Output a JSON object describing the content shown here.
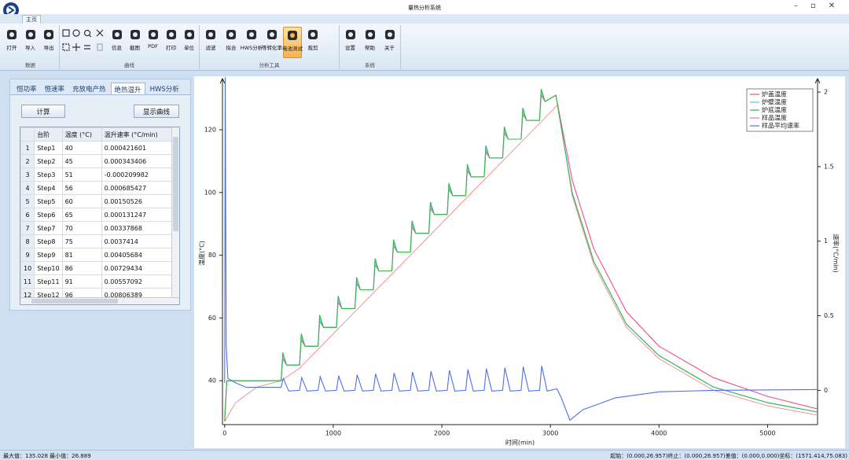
{
  "window": {
    "title": "量热分析系统",
    "tab": "主页"
  },
  "ribbon": {
    "active_button": [
      2,
      4
    ],
    "groups": [
      {
        "label": "数据",
        "buttons": [
          "打开",
          "导入",
          "导出"
        ]
      },
      {
        "label": "曲线",
        "buttons": [
          "信息",
          "截图",
          "PDF",
          "打印",
          "单位"
        ]
      },
      {
        "label": "分析工具",
        "buttons": [
          "滤波",
          "拟合",
          "HWS分析",
          "等转化率",
          "电池测试",
          "裁剪"
        ]
      },
      {
        "label": "系统",
        "buttons": [
          "设置",
          "帮助",
          "关于"
        ]
      }
    ]
  },
  "panel": {
    "tabs": [
      "恒功率",
      "恒速率",
      "充放电产热",
      "绝热温升",
      "HWS分析"
    ],
    "active_tab": 3,
    "buttons": [
      "计算",
      "显示曲线"
    ],
    "table": {
      "columns": [
        "台阶",
        "温度 (°C)",
        "温升速率 (°C/min)"
      ],
      "rows": [
        [
          1,
          "Step1",
          40,
          0.000421601
        ],
        [
          2,
          "Step2",
          45,
          0.000343406
        ],
        [
          3,
          "Step3",
          51,
          -0.000209982
        ],
        [
          4,
          "Step4",
          56,
          0.000685427
        ],
        [
          5,
          "Step5",
          60,
          0.00150526
        ],
        [
          6,
          "Step6",
          65,
          0.000131247
        ],
        [
          7,
          "Step7",
          70,
          0.00337868
        ],
        [
          8,
          "Step8",
          75,
          0.0037414
        ],
        [
          9,
          "Step9",
          81,
          0.00405684
        ],
        [
          10,
          "Step10",
          86,
          0.00729434
        ],
        [
          11,
          "Step11",
          91,
          0.00557092
        ],
        [
          12,
          "Step12",
          96,
          0.00806389
        ]
      ]
    }
  },
  "chart": {
    "type": "line",
    "xlabel": "时间(min)",
    "ylabel": "温度(°C)",
    "y2label": "速率(°C/min)",
    "xlim": [
      -20,
      5460
    ],
    "xticks": [
      0,
      1000,
      2000,
      3000,
      4000,
      5000
    ],
    "ylim": [
      26,
      136.3
    ],
    "yticks": [
      40,
      60,
      80,
      100,
      120
    ],
    "y2lim": [
      -0.23,
      2.09
    ],
    "y2ticks": [
      0,
      0.5,
      1,
      1.5,
      2
    ],
    "legend": "upper right",
    "series": [
      {
        "name": "炉盖温度",
        "color": "#ee4f86",
        "x": [
          0,
          20,
          520,
          535,
          570,
          690,
          705,
          740,
          860,
          875,
          910,
          1030,
          1045,
          1080,
          1200,
          1215,
          1250,
          1370,
          1385,
          1420,
          1540,
          1555,
          1590,
          1710,
          1725,
          1760,
          1880,
          1895,
          1930,
          2050,
          2065,
          2100,
          2220,
          2235,
          2270,
          2390,
          2405,
          2440,
          2560,
          2575,
          2610,
          2730,
          2745,
          2780,
          2900,
          2915,
          2950,
          3050,
          3200,
          3400,
          3700,
          4000,
          4500,
          5000,
          5460
        ],
        "values": [
          28,
          40,
          40,
          47,
          45,
          45,
          53,
          51,
          51,
          59,
          57,
          57,
          65,
          63,
          63,
          71,
          69,
          69,
          77,
          75,
          75,
          83,
          81,
          81,
          89,
          87,
          87,
          95,
          93,
          93,
          101,
          99,
          99,
          107,
          105,
          105,
          113,
          111,
          111,
          119,
          117,
          117,
          125,
          123,
          123,
          131,
          129,
          131,
          104,
          82,
          62,
          51,
          41,
          35,
          31
        ]
      },
      {
        "name": "炉壁温度",
        "color": "#3fd6e6",
        "x": [
          0,
          20,
          520,
          535,
          570,
          690,
          705,
          740,
          860,
          875,
          910,
          1030,
          1045,
          1080,
          1200,
          1215,
          1250,
          1370,
          1385,
          1420,
          1540,
          1555,
          1590,
          1710,
          1725,
          1760,
          1880,
          1895,
          1930,
          2050,
          2065,
          2100,
          2220,
          2235,
          2270,
          2390,
          2405,
          2440,
          2560,
          2575,
          2610,
          2730,
          2745,
          2780,
          2900,
          2915,
          2950,
          3050,
          3200,
          3400,
          3700,
          4000,
          4500,
          5000,
          5460
        ],
        "values": [
          27,
          40,
          40,
          48,
          45,
          45,
          54,
          51,
          51,
          60,
          57,
          57,
          66,
          63,
          63,
          72,
          69,
          69,
          78,
          75,
          75,
          84,
          81,
          81,
          90,
          87,
          87,
          96,
          93,
          93,
          102,
          99,
          99,
          108,
          105,
          105,
          114,
          111,
          111,
          120,
          117,
          117,
          126,
          123,
          123,
          132,
          129,
          131,
          100,
          78,
          58,
          48,
          38,
          33,
          30
        ]
      },
      {
        "name": "炉底温度",
        "color": "#3cb44b",
        "x": [
          0,
          20,
          520,
          535,
          570,
          690,
          705,
          740,
          860,
          875,
          910,
          1030,
          1045,
          1080,
          1200,
          1215,
          1250,
          1370,
          1385,
          1420,
          1540,
          1555,
          1590,
          1710,
          1725,
          1760,
          1880,
          1895,
          1930,
          2050,
          2065,
          2100,
          2220,
          2235,
          2270,
          2390,
          2405,
          2440,
          2560,
          2575,
          2610,
          2730,
          2745,
          2780,
          2900,
          2915,
          2950,
          3050,
          3200,
          3400,
          3700,
          4000,
          4500,
          5000,
          5460
        ],
        "values": [
          27,
          40,
          40,
          49,
          45,
          45,
          55,
          51,
          51,
          61,
          57,
          57,
          67,
          63,
          63,
          73,
          69,
          69,
          79,
          75,
          75,
          85,
          81,
          81,
          91,
          87,
          87,
          97,
          93,
          93,
          103,
          99,
          99,
          109,
          105,
          105,
          115,
          111,
          111,
          121,
          117,
          117,
          127,
          123,
          123,
          133,
          129,
          131,
          100,
          78,
          58,
          48,
          38,
          33,
          30
        ]
      },
      {
        "name": "样品温度",
        "color": "#f07a7a",
        "x": [
          0,
          100,
          300,
          520,
          690,
          860,
          1030,
          1200,
          1370,
          1540,
          1710,
          1880,
          2050,
          2220,
          2390,
          2560,
          2730,
          2900,
          3070,
          3200,
          3400,
          3700,
          4000,
          4500,
          5000,
          5460
        ],
        "values": [
          27,
          33,
          38,
          40,
          44,
          50,
          56,
          62,
          68,
          74,
          80,
          86,
          92,
          98,
          104,
          110,
          116,
          122,
          128,
          99,
          77,
          57,
          47,
          37,
          32,
          29
        ]
      },
      {
        "name": "样品平均速率",
        "color": "#4f6fe8",
        "axis": "y2",
        "x": [
          0,
          5,
          15,
          30,
          100,
          200,
          520,
          540,
          590,
          690,
          710,
          760,
          860,
          880,
          930,
          1030,
          1050,
          1100,
          1200,
          1220,
          1270,
          1370,
          1390,
          1440,
          1540,
          1560,
          1610,
          1710,
          1730,
          1780,
          1880,
          1900,
          1950,
          2050,
          2070,
          2120,
          2220,
          2240,
          2290,
          2390,
          2410,
          2460,
          2560,
          2580,
          2630,
          2730,
          2750,
          2800,
          2900,
          2920,
          2970,
          3060,
          3100,
          3180,
          3300,
          3600,
          4000,
          4500,
          5460
        ],
        "values": [
          0.05,
          2.1,
          0.3,
          0.08,
          0.05,
          0.02,
          0.02,
          0.08,
          -0.005,
          0,
          0.086,
          -0.005,
          0,
          0.092,
          -0.005,
          0,
          0.098,
          -0.005,
          0,
          0.104,
          -0.005,
          0,
          0.11,
          -0.005,
          0,
          0.116,
          -0.005,
          0,
          0.122,
          -0.005,
          0,
          0.128,
          -0.005,
          0,
          0.134,
          -0.005,
          0,
          0.14,
          -0.005,
          0,
          0.146,
          -0.005,
          0,
          0.152,
          -0.005,
          0,
          0.158,
          -0.005,
          0,
          0.164,
          -0.005,
          0.01,
          -0.05,
          -0.2,
          -0.13,
          -0.05,
          -0.01,
          0,
          0.005
        ]
      }
    ]
  },
  "status": {
    "left": "最大值：135.028 最小值：26.889",
    "right": "起始：(0.000,26.957)终止：(0.000,26.957)差值：(0.000,0.000)坐标：(1571.414,75.083)"
  }
}
